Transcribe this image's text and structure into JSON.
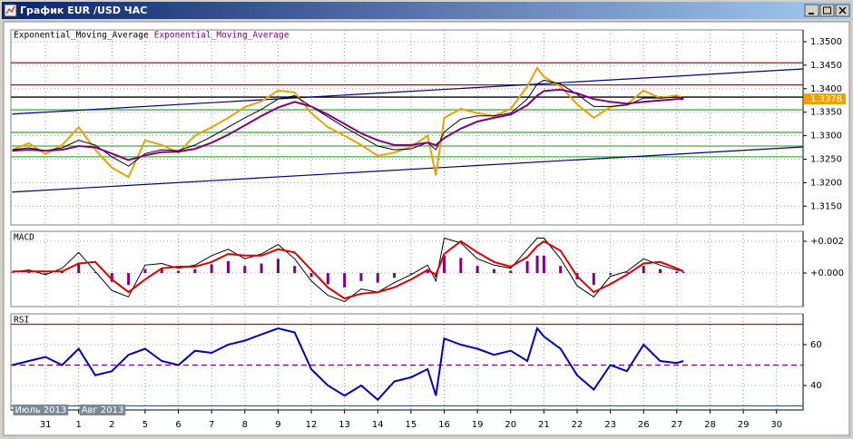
{
  "window": {
    "title": "График EUR /USD ЧАС"
  },
  "chart_data": [
    {
      "type": "line",
      "x": [
        -1,
        -0.5,
        0,
        0.5,
        1,
        1.5,
        2,
        2.5,
        3,
        3.5,
        4,
        4.5,
        5,
        5.5,
        6,
        6.5,
        7,
        7.5,
        8,
        8.5,
        9,
        9.5,
        10,
        10.5,
        11,
        11.5,
        11.75,
        12,
        12.5,
        13,
        13.5,
        14,
        14.5,
        14.8,
        15,
        15.5,
        16,
        16.5,
        17,
        17.5,
        18,
        18.5,
        19,
        19.2
      ],
      "series": [
        {
          "color": "#e8a400",
          "values": [
            1.327,
            1.3284,
            1.3261,
            1.328,
            1.3318,
            1.327,
            1.3232,
            1.3212,
            1.329,
            1.328,
            1.3264,
            1.33,
            1.3318,
            1.3338,
            1.3361,
            1.3373,
            1.3396,
            1.3392,
            1.3348,
            1.3318,
            1.33,
            1.328,
            1.3257,
            1.3264,
            1.3276,
            1.33,
            1.3215,
            1.3338,
            1.3357,
            1.3348,
            1.3342,
            1.3357,
            1.3405,
            1.3444,
            1.3425,
            1.3405,
            1.3367,
            1.3338,
            1.3361,
            1.3367,
            1.3396,
            1.338,
            1.3386,
            1.3378
          ]
        },
        {
          "name": "Exponential_Moving_Average",
          "color": "#000000",
          "values": [
            1.327,
            1.3274,
            1.3268,
            1.3274,
            1.329,
            1.328,
            1.3255,
            1.3235,
            1.3262,
            1.327,
            1.3268,
            1.328,
            1.3298,
            1.3318,
            1.3338,
            1.3356,
            1.3378,
            1.3385,
            1.3362,
            1.334,
            1.3318,
            1.3298,
            1.3278,
            1.327,
            1.3272,
            1.3285,
            1.327,
            1.3308,
            1.3335,
            1.3342,
            1.3342,
            1.3348,
            1.3378,
            1.341,
            1.3418,
            1.341,
            1.3388,
            1.3362,
            1.3362,
            1.3365,
            1.338,
            1.338,
            1.3382,
            1.338
          ]
        },
        {
          "name": "Exponential_Moving_Average",
          "color": "#800080",
          "values": [
            1.3268,
            1.327,
            1.3268,
            1.327,
            1.3278,
            1.3275,
            1.3262,
            1.3248,
            1.3258,
            1.3265,
            1.3266,
            1.3272,
            1.3285,
            1.3302,
            1.3322,
            1.3342,
            1.336,
            1.3372,
            1.3362,
            1.3345,
            1.3325,
            1.3305,
            1.329,
            1.328,
            1.328,
            1.3285,
            1.328,
            1.3295,
            1.3315,
            1.333,
            1.3338,
            1.3345,
            1.3365,
            1.3385,
            1.3395,
            1.3398,
            1.339,
            1.3378,
            1.3372,
            1.3368,
            1.3372,
            1.3375,
            1.3378,
            1.3378
          ]
        }
      ],
      "ylim": [
        1.311,
        1.3525
      ],
      "yticks": [
        {
          "value": 1.315,
          "label": "1.3150"
        },
        {
          "value": 1.32,
          "label": "1.3200"
        },
        {
          "value": 1.325,
          "label": "1.3250"
        },
        {
          "value": 1.33,
          "label": "1.3300"
        },
        {
          "value": 1.335,
          "label": "1.3350"
        },
        {
          "value": 1.34,
          "label": "1.3400"
        },
        {
          "value": 1.345,
          "label": "1.3450"
        },
        {
          "value": 1.35,
          "label": "1.3500"
        }
      ],
      "grid": true,
      "last_price": 1.3378,
      "last_price_color": "#f0a000",
      "levels": [
        {
          "value": 1.3455,
          "color": "#d00000"
        },
        {
          "value": 1.3408,
          "color": "#d00000"
        },
        {
          "value": 1.3382,
          "color": "#000000"
        },
        {
          "value": 1.3355,
          "color": "#40b040"
        },
        {
          "value": 1.3307,
          "color": "#40b040"
        },
        {
          "value": 1.3278,
          "color": "#40b040"
        },
        {
          "value": 1.3255,
          "color": "#40b040"
        }
      ],
      "trendlines": [
        {
          "x": [
            -1,
            22.8
          ],
          "values": [
            1.3346,
            1.3442
          ],
          "color": "#000080"
        },
        {
          "x": [
            -1,
            22.8
          ],
          "values": [
            1.318,
            1.3276
          ],
          "color": "#000080"
        }
      ]
    },
    {
      "type": "macd",
      "title": "MACD",
      "x": [
        -1,
        -0.5,
        0,
        0.5,
        1,
        1.5,
        2,
        2.5,
        3,
        3.5,
        4,
        4.5,
        5,
        5.5,
        6,
        6.5,
        7,
        7.5,
        8,
        8.5,
        9,
        9.5,
        10,
        10.5,
        11,
        11.5,
        11.75,
        12,
        12.5,
        13,
        13.5,
        14,
        14.5,
        14.8,
        15,
        15.5,
        16,
        16.5,
        17,
        17.5,
        18,
        18.5,
        19,
        19.2
      ],
      "series": [
        {
          "style": "bar",
          "color": "#800080",
          "values": [
            3e-05,
            0.0001,
            -5e-05,
            0.00015,
            0.00065,
            5e-05,
            -0.00055,
            -0.00075,
            0.00025,
            0.0003,
            0.00015,
            0.00025,
            0.00055,
            0.00075,
            0.00045,
            0.0006,
            0.0009,
            0.00045,
            -0.00025,
            -0.0007,
            -0.0009,
            -0.0005,
            -0.0006,
            -0.0003,
            -5e-05,
            0.00025,
            -0.00025,
            0.0011,
            0.00095,
            0.00045,
            0.00025,
            0.00015,
            0.00075,
            0.0011,
            0.0011,
            0.00045,
            -0.0004,
            -0.00075,
            -0.0001,
            5e-05,
            0.00045,
            0.00025,
            0.0001,
            5e-05
          ]
        },
        {
          "style": "line",
          "color": "#000000",
          "values": [
            6e-05,
            0.0002,
            -0.0001,
            0.0003,
            0.0013,
            0.0001,
            -0.0011,
            -0.0015,
            0.0005,
            0.0006,
            0.0003,
            0.0005,
            0.0011,
            0.0015,
            0.0009,
            0.0012,
            0.0018,
            0.0009,
            -0.0005,
            -0.0014,
            -0.0018,
            -0.001,
            -0.0012,
            -0.0006,
            -0.0001,
            0.0005,
            -0.0005,
            0.0022,
            0.0019,
            0.0009,
            0.0005,
            0.0003,
            0.0015,
            0.0022,
            0.0022,
            0.0009,
            -0.0008,
            -0.0015,
            -0.0002,
            0.0001,
            0.0009,
            0.0005,
            0.0002,
            0.0001
          ]
        },
        {
          "style": "line",
          "color": "#e00000",
          "values": [
            0.0001,
            0.0001,
            0.0001,
            0.0001,
            0.0006,
            0.0007,
            -0.0004,
            -0.0012,
            -0.0004,
            0.0003,
            0.0004,
            0.0004,
            0.0007,
            0.0012,
            0.0011,
            0.0011,
            0.0015,
            0.0013,
            0.0002,
            -0.0009,
            -0.0016,
            -0.0013,
            -0.0012,
            -0.0009,
            -0.0004,
            0.0002,
            -0.0001,
            0.0012,
            0.002,
            0.0013,
            0.0007,
            0.0004,
            0.001,
            0.0017,
            0.002,
            0.0014,
            -0.0002,
            -0.0012,
            -0.0007,
            -0.0001,
            0.0006,
            0.0007,
            0.0003,
            0.0001
          ]
        }
      ],
      "ylim": [
        -0.00211,
        0.00263
      ],
      "yticks": [
        {
          "value": 0,
          "label": "+0.000"
        },
        {
          "value": 0.002,
          "label": "+0.002"
        }
      ],
      "grid": true
    },
    {
      "type": "line",
      "title": "RSI",
      "x": [
        -1,
        -0.5,
        0,
        0.5,
        1,
        1.5,
        2,
        2.5,
        3,
        3.5,
        4,
        4.5,
        5,
        5.5,
        6,
        6.5,
        7,
        7.5,
        8,
        8.5,
        9,
        9.5,
        10,
        10.5,
        11,
        11.5,
        11.75,
        12,
        12.5,
        13,
        13.5,
        14,
        14.5,
        14.8,
        15,
        15.5,
        16,
        16.5,
        17,
        17.5,
        18,
        18.5,
        19,
        19.2
      ],
      "series": [
        {
          "color": "#0000c0",
          "values": [
            50,
            52,
            54,
            50,
            58,
            45,
            47,
            55,
            58,
            52,
            50,
            57,
            56,
            60,
            62,
            65,
            68,
            66,
            48,
            40,
            35,
            40,
            33,
            42,
            44,
            48,
            35,
            63,
            60,
            58,
            55,
            57,
            52,
            68,
            64,
            58,
            45,
            38,
            50,
            47,
            60,
            52,
            51,
            52
          ]
        }
      ],
      "ylim": [
        28,
        75.1
      ],
      "yticks": [
        40,
        60
      ],
      "grid": true,
      "levels": [
        {
          "value": 70,
          "color": "#e00000"
        },
        {
          "value": 50,
          "color": "#800080",
          "dashed": true
        },
        {
          "value": 30,
          "color": "#008080"
        }
      ],
      "xlim": [
        -1.04,
        22.8
      ],
      "xticks": [
        {
          "value": 0,
          "label": "31"
        },
        {
          "value": 1,
          "label": "1"
        },
        {
          "value": 2,
          "label": "2"
        },
        {
          "value": 3,
          "label": "5"
        },
        {
          "value": 4,
          "label": "6"
        },
        {
          "value": 5,
          "label": "7"
        },
        {
          "value": 6,
          "label": "8"
        },
        {
          "value": 7,
          "label": "9"
        },
        {
          "value": 8,
          "label": "12"
        },
        {
          "value": 9,
          "label": "13"
        },
        {
          "value": 10,
          "label": "14"
        },
        {
          "value": 11,
          "label": "15"
        },
        {
          "value": 12,
          "label": "16"
        },
        {
          "value": 13,
          "label": "19"
        },
        {
          "value": 14,
          "label": "20"
        },
        {
          "value": 15,
          "label": "21"
        },
        {
          "value": 16,
          "label": "22"
        },
        {
          "value": 17,
          "label": "23"
        },
        {
          "value": 18,
          "label": "26"
        },
        {
          "value": 19,
          "label": "27"
        },
        {
          "value": 20,
          "label": "28"
        },
        {
          "value": 21,
          "label": "29"
        },
        {
          "value": 22,
          "label": "30"
        }
      ],
      "months": [
        {
          "value": -1,
          "label": "Июль 2013"
        },
        {
          "value": 1,
          "label": "Авг 2013"
        }
      ]
    }
  ]
}
